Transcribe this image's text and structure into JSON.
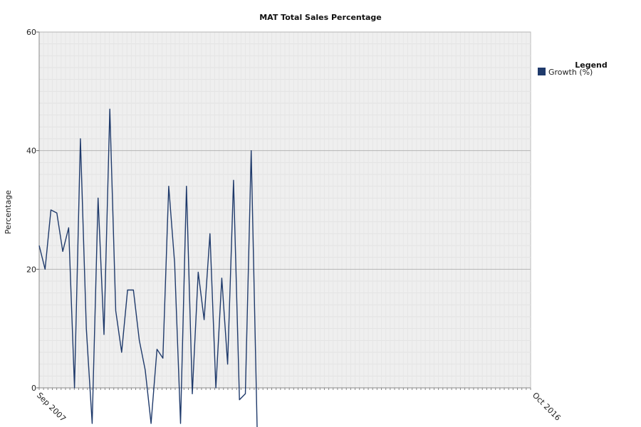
{
  "chart_data": {
    "type": "line",
    "title": "MAT Total Sales Percentage",
    "xlabel": "",
    "ylabel": "Percentage",
    "ylim": [
      0,
      60
    ],
    "yticks": [
      "0",
      "20",
      "40",
      "60"
    ],
    "grid": true,
    "legend_position": "right",
    "legend": {
      "title": "Legend",
      "entries": [
        "Growth (%)"
      ]
    },
    "first_x_label": "Sep 2007",
    "last_x_label": "Oct 2016",
    "series_color": "#1f3a6b",
    "series": [
      {
        "name": "Growth (%)",
        "values": [
          24,
          20,
          30,
          29.5,
          23,
          27,
          0,
          42,
          10,
          -6,
          32,
          9,
          47,
          13,
          6,
          16.5,
          16.5,
          8,
          3,
          -6,
          6.5,
          5,
          34,
          21,
          -6,
          34,
          -1,
          19.5,
          11.5,
          26,
          0,
          18.5,
          4,
          35,
          -2,
          -1,
          40,
          -7
        ]
      }
    ]
  }
}
